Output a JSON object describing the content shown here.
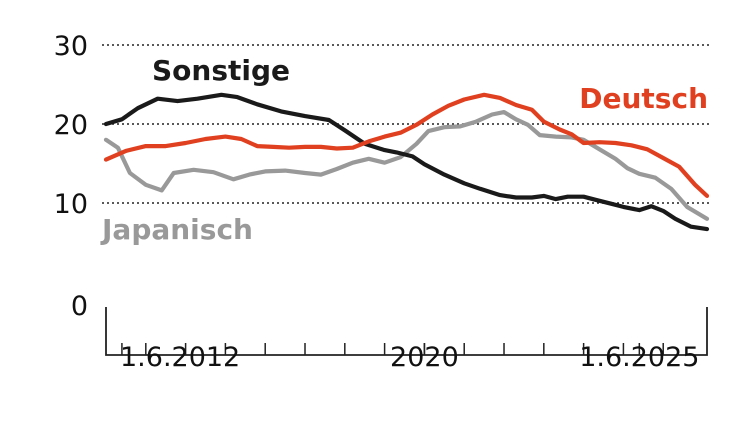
{
  "chart_data": {
    "type": "line",
    "y_ticks": [
      "0",
      "10",
      "20",
      "30"
    ],
    "ylim": [
      0,
      30
    ],
    "x_tick_labels": [
      "1.6.2012",
      "2020",
      "1.6.2025"
    ],
    "x_tick_values": [
      2012.4,
      2020.0,
      2025.4
    ],
    "xlim": [
      2012.0,
      2027.1
    ],
    "grid": "dotted horizontal at 10, 20, 30",
    "series": [
      {
        "name": "Sonstige",
        "color": "#1a1a1a",
        "points": [
          [
            2012.0,
            20.0
          ],
          [
            2012.4,
            20.6
          ],
          [
            2012.8,
            22.0
          ],
          [
            2013.3,
            23.2
          ],
          [
            2013.8,
            22.9
          ],
          [
            2014.3,
            23.2
          ],
          [
            2014.9,
            23.7
          ],
          [
            2015.3,
            23.4
          ],
          [
            2015.8,
            22.5
          ],
          [
            2016.4,
            21.6
          ],
          [
            2017.0,
            21.0
          ],
          [
            2017.6,
            20.5
          ],
          [
            2018.0,
            19.2
          ],
          [
            2018.5,
            17.5
          ],
          [
            2019.0,
            16.7
          ],
          [
            2019.3,
            16.4
          ],
          [
            2019.7,
            15.9
          ],
          [
            2020.0,
            14.9
          ],
          [
            2020.5,
            13.6
          ],
          [
            2021.0,
            12.5
          ],
          [
            2021.4,
            11.8
          ],
          [
            2021.9,
            11.0
          ],
          [
            2022.3,
            10.7
          ],
          [
            2022.7,
            10.7
          ],
          [
            2023.0,
            10.9
          ],
          [
            2023.3,
            10.5
          ],
          [
            2023.6,
            10.8
          ],
          [
            2024.0,
            10.8
          ],
          [
            2024.3,
            10.4
          ],
          [
            2024.7,
            9.9
          ],
          [
            2025.0,
            9.5
          ],
          [
            2025.4,
            9.1
          ],
          [
            2025.7,
            9.6
          ],
          [
            2026.0,
            9.0
          ],
          [
            2026.3,
            8.0
          ],
          [
            2026.7,
            7.0
          ],
          [
            2027.1,
            6.7
          ]
        ]
      },
      {
        "name": "Deutsch",
        "color": "#e0401f",
        "points": [
          [
            2012.0,
            15.5
          ],
          [
            2012.5,
            16.6
          ],
          [
            2013.0,
            17.2
          ],
          [
            2013.5,
            17.2
          ],
          [
            2014.0,
            17.6
          ],
          [
            2014.5,
            18.1
          ],
          [
            2015.0,
            18.4
          ],
          [
            2015.4,
            18.1
          ],
          [
            2015.8,
            17.2
          ],
          [
            2016.2,
            17.1
          ],
          [
            2016.6,
            17.0
          ],
          [
            2017.0,
            17.1
          ],
          [
            2017.4,
            17.1
          ],
          [
            2017.8,
            16.9
          ],
          [
            2018.2,
            17.0
          ],
          [
            2018.6,
            17.8
          ],
          [
            2019.0,
            18.4
          ],
          [
            2019.4,
            18.9
          ],
          [
            2019.8,
            19.9
          ],
          [
            2020.2,
            21.2
          ],
          [
            2020.6,
            22.3
          ],
          [
            2021.0,
            23.1
          ],
          [
            2021.5,
            23.7
          ],
          [
            2021.9,
            23.3
          ],
          [
            2022.3,
            22.4
          ],
          [
            2022.7,
            21.8
          ],
          [
            2023.0,
            20.3
          ],
          [
            2023.4,
            19.3
          ],
          [
            2023.7,
            18.7
          ],
          [
            2024.0,
            17.6
          ],
          [
            2024.4,
            17.7
          ],
          [
            2024.8,
            17.6
          ],
          [
            2025.2,
            17.3
          ],
          [
            2025.6,
            16.8
          ],
          [
            2026.0,
            15.7
          ],
          [
            2026.4,
            14.6
          ],
          [
            2026.8,
            12.3
          ],
          [
            2027.1,
            10.9
          ]
        ]
      },
      {
        "name": "Japanisch",
        "color": "#999999",
        "points": [
          [
            2012.0,
            18.0
          ],
          [
            2012.3,
            17.0
          ],
          [
            2012.6,
            13.8
          ],
          [
            2013.0,
            12.3
          ],
          [
            2013.4,
            11.6
          ],
          [
            2013.7,
            13.8
          ],
          [
            2014.2,
            14.2
          ],
          [
            2014.7,
            13.9
          ],
          [
            2015.2,
            13.0
          ],
          [
            2015.6,
            13.6
          ],
          [
            2016.0,
            14.0
          ],
          [
            2016.5,
            14.1
          ],
          [
            2017.0,
            13.8
          ],
          [
            2017.4,
            13.6
          ],
          [
            2017.8,
            14.3
          ],
          [
            2018.2,
            15.1
          ],
          [
            2018.6,
            15.6
          ],
          [
            2019.0,
            15.1
          ],
          [
            2019.4,
            15.8
          ],
          [
            2019.8,
            17.5
          ],
          [
            2020.1,
            19.1
          ],
          [
            2020.5,
            19.6
          ],
          [
            2020.9,
            19.7
          ],
          [
            2021.3,
            20.3
          ],
          [
            2021.7,
            21.2
          ],
          [
            2022.0,
            21.5
          ],
          [
            2022.3,
            20.6
          ],
          [
            2022.6,
            19.9
          ],
          [
            2022.9,
            18.6
          ],
          [
            2023.3,
            18.4
          ],
          [
            2023.7,
            18.3
          ],
          [
            2024.0,
            18.0
          ],
          [
            2024.4,
            16.8
          ],
          [
            2024.8,
            15.6
          ],
          [
            2025.1,
            14.4
          ],
          [
            2025.4,
            13.7
          ],
          [
            2025.8,
            13.2
          ],
          [
            2026.2,
            11.8
          ],
          [
            2026.6,
            9.5
          ],
          [
            2027.1,
            8.0
          ]
        ]
      }
    ]
  }
}
